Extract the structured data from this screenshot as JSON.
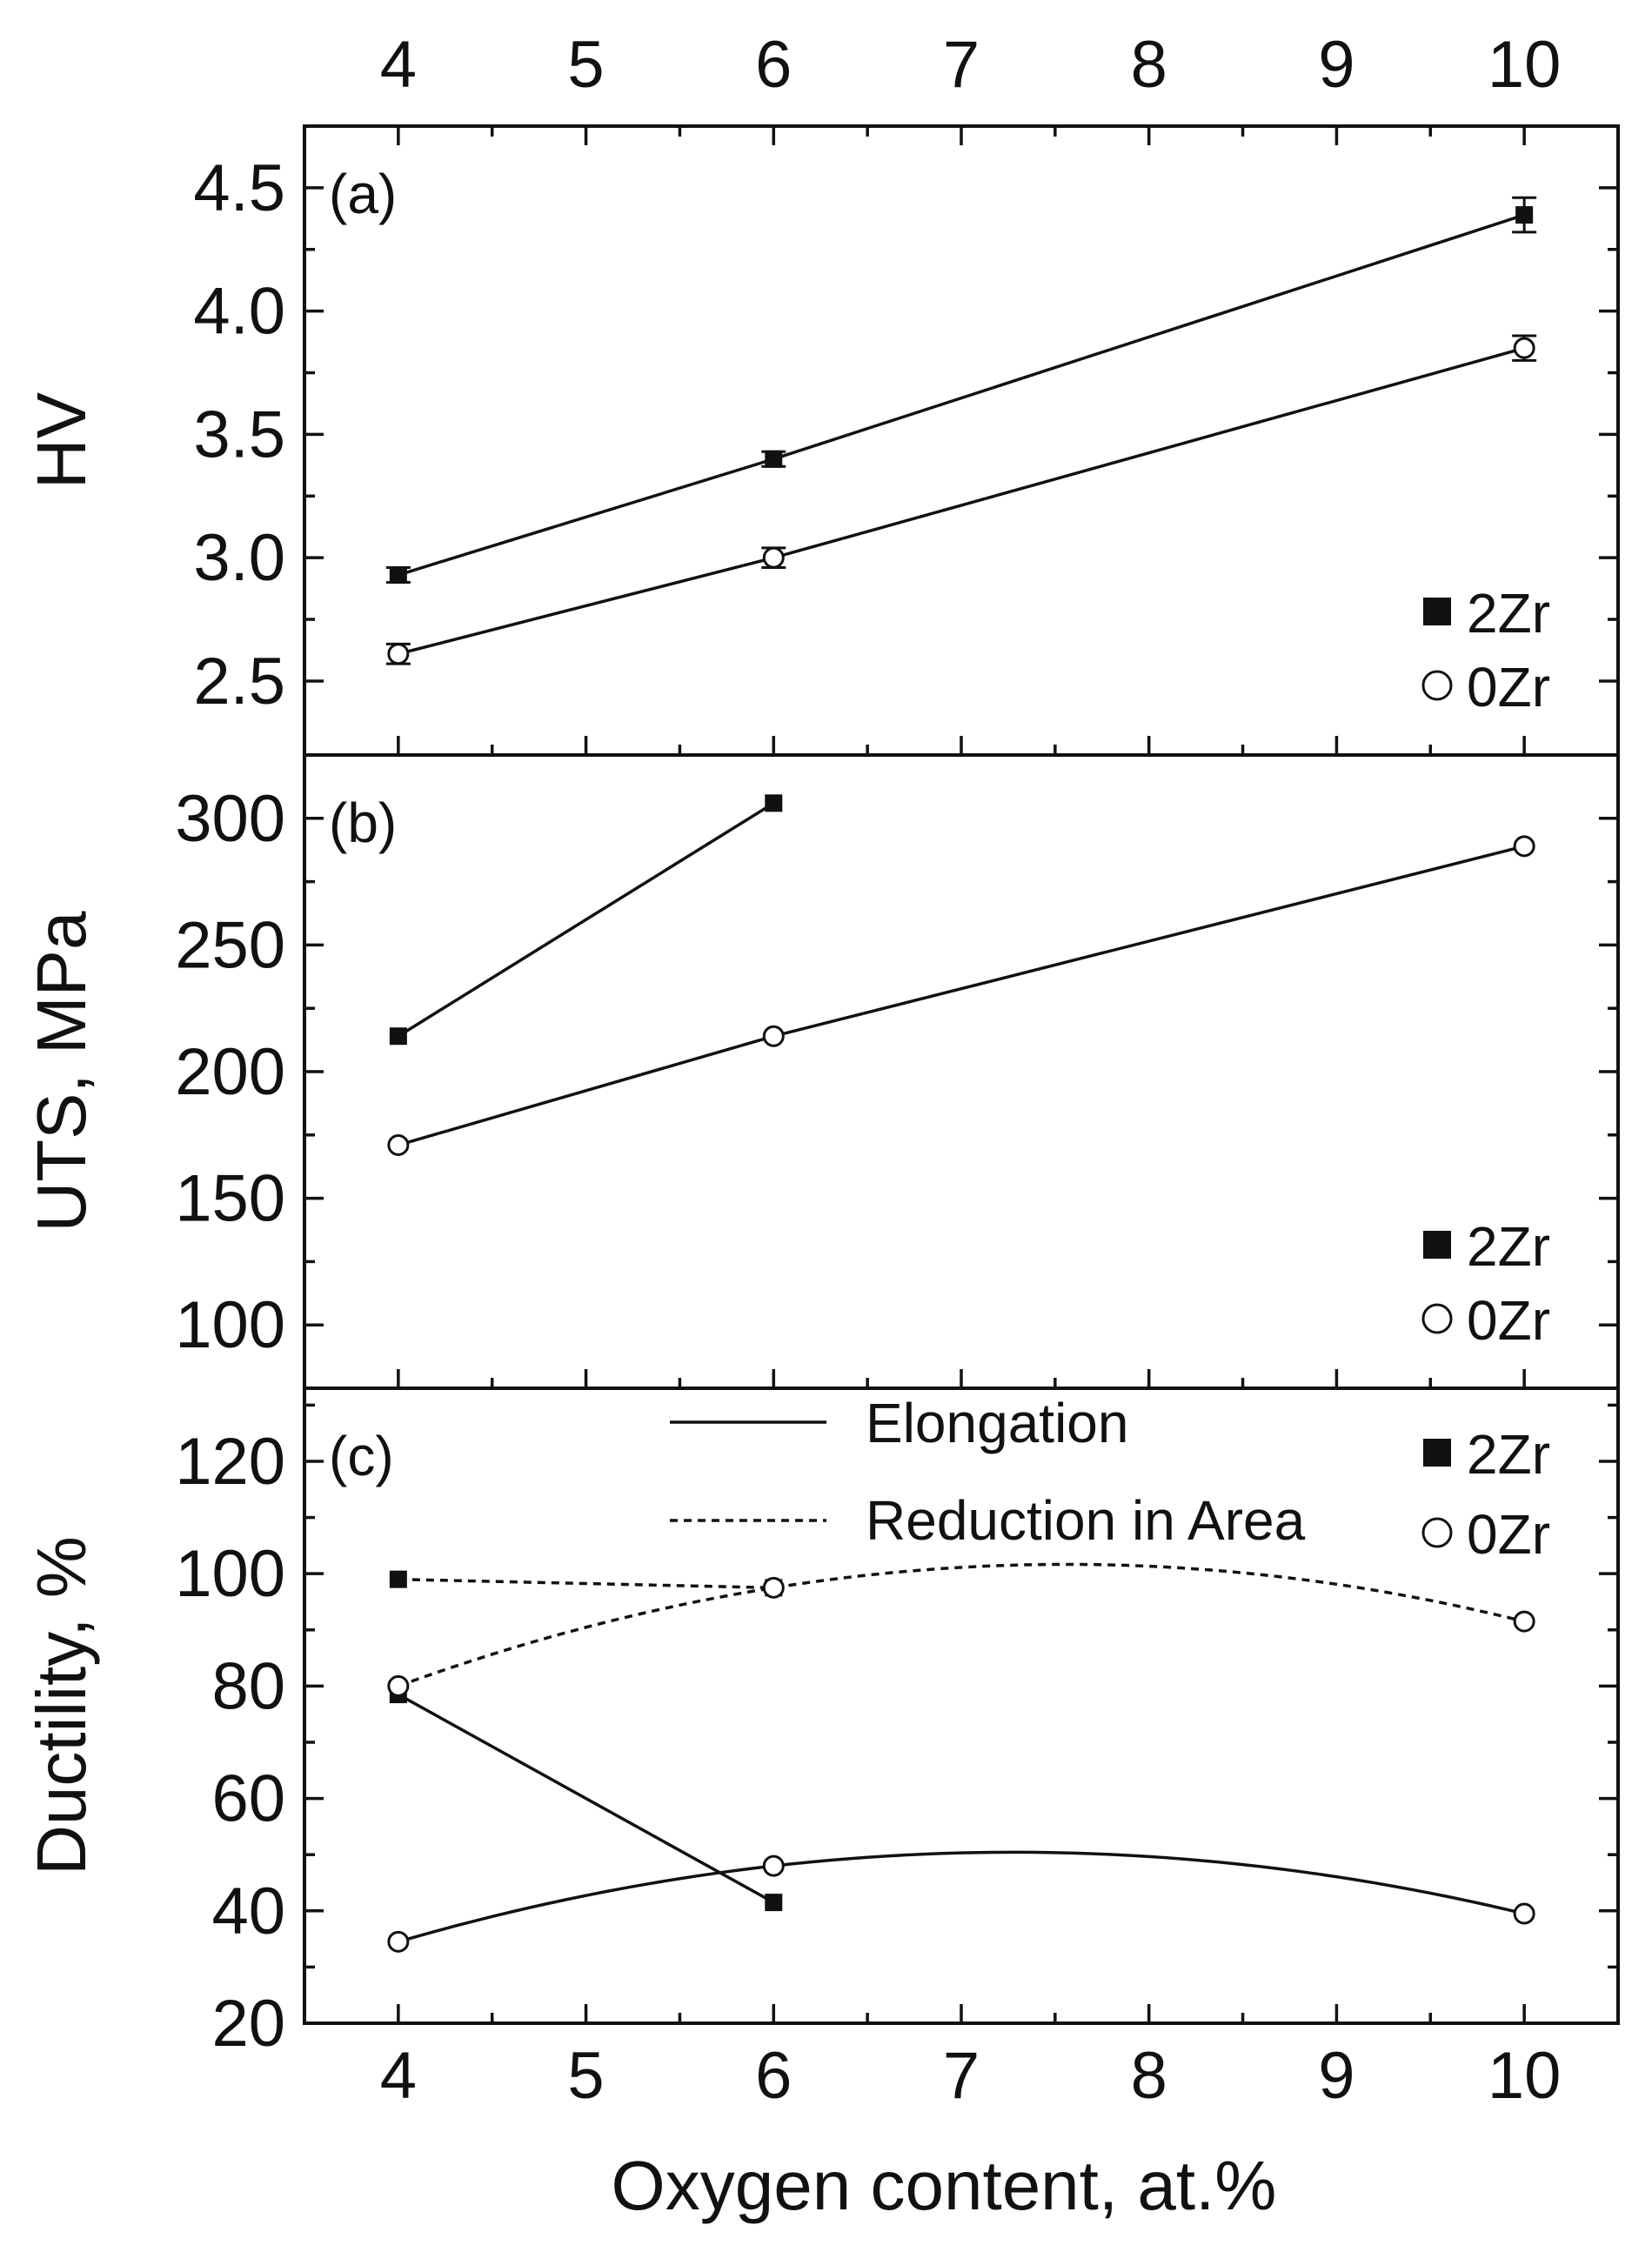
{
  "chart_data": [
    {
      "panel": "(a)",
      "type": "line",
      "ylabel": "HV",
      "ylim": [
        2.2,
        4.75
      ],
      "yticks": [
        2.5,
        3.0,
        3.5,
        4.0,
        4.5
      ],
      "ytick_labels": [
        "2.5",
        "3.0",
        "3.5",
        "4.0",
        "4.5"
      ],
      "yminor": [
        2.75,
        3.25,
        3.75,
        4.25,
        4.75
      ],
      "x": [
        4,
        6,
        10
      ],
      "series": [
        {
          "name": "2Zr",
          "marker": "filled-square",
          "values": [
            2.93,
            3.4,
            4.39
          ],
          "errors": [
            0.03,
            0.03,
            0.07
          ]
        },
        {
          "name": "0Zr",
          "marker": "open-circle",
          "values": [
            2.61,
            3.0,
            3.85
          ],
          "errors": [
            0.04,
            0.04,
            0.05
          ]
        }
      ],
      "legend": [
        "2Zr",
        "0Zr"
      ],
      "legend_position": "bottom-right"
    },
    {
      "panel": "(b)",
      "type": "line",
      "ylabel": "UTS, MPa",
      "ylim": [
        75,
        325
      ],
      "yticks": [
        100,
        150,
        200,
        250,
        300
      ],
      "ytick_labels": [
        "100",
        "150",
        "200",
        "250",
        "300"
      ],
      "yminor": [
        125,
        175,
        225,
        275,
        325
      ],
      "series": [
        {
          "name": "2Zr",
          "marker": "filled-square",
          "x": [
            4,
            6
          ],
          "values": [
            214,
            306
          ]
        },
        {
          "name": "0Zr",
          "marker": "open-circle",
          "x": [
            4,
            6,
            10
          ],
          "values": [
            171,
            214,
            289
          ]
        }
      ],
      "legend": [
        "2Zr",
        "0Zr"
      ],
      "legend_position": "bottom-right"
    },
    {
      "panel": "(c)",
      "type": "line",
      "ylabel": "Ductility, %",
      "xlabel": "Oxygen content, at.%",
      "ylim": [
        20,
        133
      ],
      "yticks": [
        20,
        40,
        60,
        80,
        100,
        120
      ],
      "ytick_labels": [
        "20",
        "40",
        "60",
        "80",
        "100",
        "120"
      ],
      "yminor": [
        30,
        50,
        70,
        90,
        110,
        130
      ],
      "series": [
        {
          "name": "2Zr Elongation",
          "marker": "filled-square",
          "line": "solid",
          "x": [
            4,
            6
          ],
          "values": [
            78.5,
            41.5
          ]
        },
        {
          "name": "2Zr Reduction in Area",
          "marker": "filled-square",
          "line": "dashed",
          "x": [
            4,
            6
          ],
          "values": [
            99,
            97.5
          ]
        },
        {
          "name": "0Zr Elongation",
          "marker": "open-circle",
          "line": "solid",
          "x": [
            4,
            6,
            10
          ],
          "values": [
            34.5,
            48,
            39.5
          ],
          "fit": "quadratic"
        },
        {
          "name": "0Zr Reduction in Area",
          "marker": "open-circle",
          "line": "dashed",
          "x": [
            4,
            6,
            10
          ],
          "values": [
            80,
            97.5,
            91.5
          ],
          "fit": "quadratic"
        }
      ],
      "line_legend": [
        "Elongation",
        "Reduction in Area"
      ],
      "legend": [
        "2Zr",
        "0Zr"
      ],
      "legend_position": "top"
    }
  ],
  "x_axis": {
    "xlim": [
      3.5,
      10.5
    ],
    "xticks": [
      4,
      5,
      6,
      7,
      8,
      9,
      10
    ],
    "xtick_labels": [
      "4",
      "5",
      "6",
      "7",
      "8",
      "9",
      "10"
    ],
    "xminor": [
      4.5,
      5.5,
      6.5,
      7.5,
      8.5,
      9.5
    ],
    "xlabel": "Oxygen content, at.%"
  }
}
